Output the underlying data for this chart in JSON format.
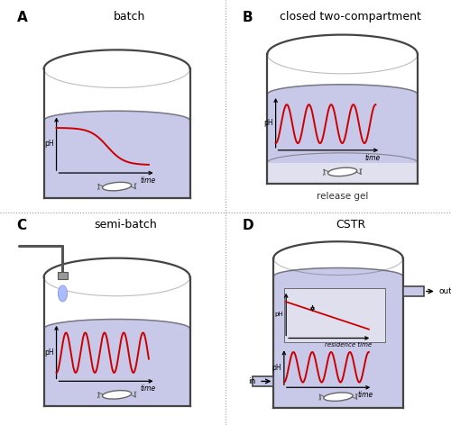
{
  "bg_color": "#ffffff",
  "liq_color": "#c8c8e8",
  "liq_color_deep": "#b8b8e0",
  "gel_color": "#e8e8f0",
  "vessel_edge": "#444444",
  "vessel_lw": 1.6,
  "plot_color": "#cc0000",
  "plot_lw": 1.4,
  "axis_color": "#222222",
  "divider_color": "#999999",
  "panel_labels": [
    "A",
    "B",
    "C",
    "D"
  ],
  "titles": [
    "batch",
    "closed two-compartment",
    "semi-batch",
    "CSTR"
  ],
  "title_fontsize": 9,
  "panel_label_fontsize": 11,
  "stir_color": "#666666",
  "port_color": "#8888aa"
}
